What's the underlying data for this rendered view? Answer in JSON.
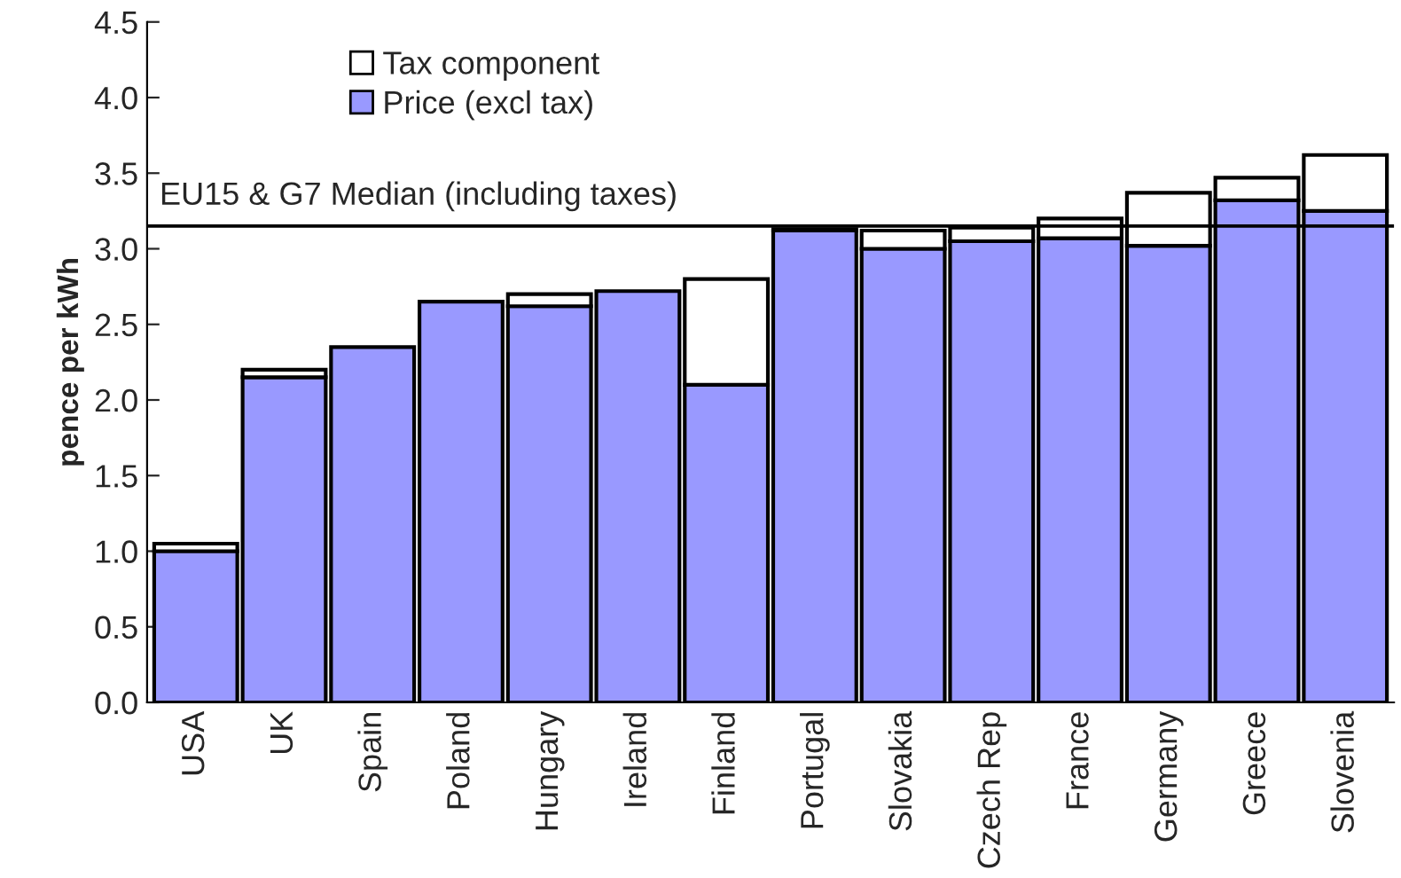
{
  "chart_data": {
    "type": "bar",
    "stacked": true,
    "ylabel": "pence per kWh",
    "categories": [
      "USA",
      "UK",
      "Spain",
      "Poland",
      "Hungary",
      "Ireland",
      "Finland",
      "Portugal",
      "Slovakia",
      "Czech Rep",
      "France",
      "Germany",
      "Greece",
      "Slovenia"
    ],
    "series": [
      {
        "name": "Price (excl tax)",
        "color": "#9999ff",
        "values": [
          1.0,
          2.15,
          2.35,
          2.65,
          2.62,
          2.72,
          2.1,
          3.12,
          3.0,
          3.05,
          3.07,
          3.02,
          3.32,
          3.25
        ]
      },
      {
        "name": "Tax component",
        "color": "#ffffff",
        "values": [
          0.05,
          0.05,
          0,
          0,
          0.08,
          0,
          0.7,
          0.01,
          0.12,
          0.09,
          0.13,
          0.35,
          0.15,
          0.37
        ]
      }
    ],
    "ylim": [
      0,
      4.5
    ],
    "yticks": [
      {
        "value": 0,
        "label": "0.0"
      },
      {
        "value": 0.5,
        "label": "0.5"
      },
      {
        "value": 1,
        "label": "1.0"
      },
      {
        "value": 1.5,
        "label": "1.5"
      },
      {
        "value": 2,
        "label": "2.0"
      },
      {
        "value": 2.5,
        "label": "2.5"
      },
      {
        "value": 3,
        "label": "3.0"
      },
      {
        "value": 3.5,
        "label": "3.5"
      },
      {
        "value": 4,
        "label": "4.0"
      },
      {
        "value": 4.5,
        "label": "4.5"
      }
    ],
    "ref_lines": [
      {
        "axis": "y",
        "value": 3.15,
        "label": "EU15 & G7 Median (including taxes)",
        "color": "#000000"
      }
    ],
    "grid": false,
    "legend": "top left"
  }
}
